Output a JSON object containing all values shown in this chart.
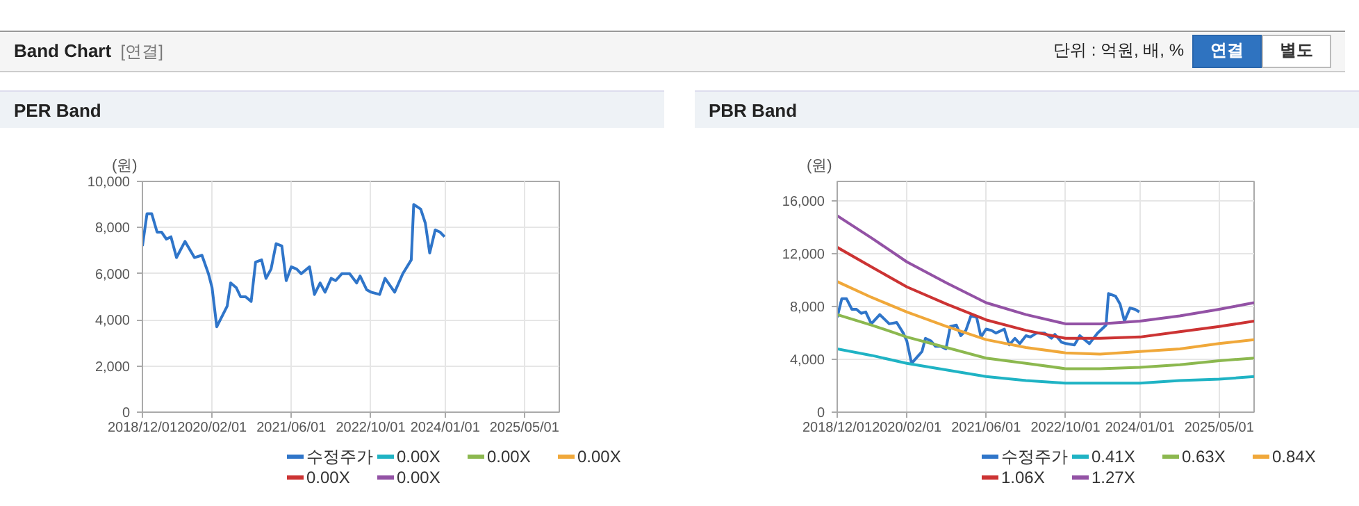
{
  "chart_data": [
    {
      "type": "line",
      "title": "PER Band",
      "ylabel": "(원)",
      "annotations": [
        "Band Chart",
        "[연결]",
        "단위 : 억원, 배, %",
        "연결",
        "별도"
      ],
      "x": [
        "2018-12-01",
        "2018-12-29",
        "2019-01-27",
        "2019-03-01",
        "2019-03-29",
        "2019-04-27",
        "2019-05-25",
        "2019-06-28",
        "2019-08-19",
        "2019-10-16",
        "2019-12-01",
        "2020-01-10",
        "2020-02-01",
        "2020-03-01",
        "2020-05-04",
        "2020-05-25",
        "2020-06-28",
        "2020-07-25",
        "2020-08-25",
        "2020-09-28",
        "2020-10-25",
        "2020-12-01",
        "2020-12-28",
        "2021-01-28",
        "2021-02-28",
        "2021-04-04",
        "2021-05-01",
        "2021-06-01",
        "2021-07-04",
        "2021-08-01",
        "2021-09-21",
        "2021-10-21",
        "2021-11-25",
        "2021-12-25",
        "2022-02-01",
        "2022-02-28",
        "2022-04-07",
        "2022-05-25",
        "2022-07-07",
        "2022-07-28",
        "2022-09-07",
        "2022-10-04",
        "2022-11-25",
        "2022-12-28",
        "2023-02-25",
        "2023-04-16",
        "2023-06-07",
        "2023-06-22",
        "2023-08-04",
        "2023-09-01",
        "2023-09-28",
        "2023-11-01",
        "2023-12-01",
        "2023-12-28"
      ],
      "series": [
        {
          "name": "수정주가",
          "color": "#2f75c9",
          "values": [
            7200,
            8600,
            8600,
            7800,
            7800,
            7500,
            7600,
            6700,
            7400,
            6700,
            6800,
            6000,
            5400,
            3700,
            4600,
            5600,
            5400,
            5000,
            5000,
            4800,
            6500,
            6600,
            5800,
            6200,
            7300,
            7200,
            5700,
            6300,
            6200,
            6000,
            6300,
            5100,
            5600,
            5200,
            5800,
            5700,
            6000,
            6000,
            5600,
            5900,
            5300,
            5200,
            5100,
            5800,
            5200,
            6000,
            6600,
            9000,
            8800,
            8200,
            6900,
            7900,
            7800,
            7600
          ]
        },
        {
          "name": "0.00X",
          "color": "#1fb3c4",
          "values": [
            null,
            null,
            null,
            null,
            null,
            null,
            null,
            null,
            null,
            null,
            null,
            null,
            null,
            null,
            null,
            null,
            null,
            null,
            null,
            null,
            null,
            null,
            null,
            null,
            null,
            null,
            null,
            null,
            null,
            null,
            null,
            null,
            null,
            null,
            null,
            null,
            null,
            null,
            null,
            null,
            null,
            null,
            null,
            null,
            null,
            null,
            null,
            null,
            null,
            null,
            null,
            null,
            null,
            null
          ]
        },
        {
          "name": "0.00X",
          "color": "#8cb84f",
          "values": [
            null,
            null,
            null,
            null,
            null,
            null,
            null,
            null,
            null,
            null,
            null,
            null,
            null,
            null,
            null,
            null,
            null,
            null,
            null,
            null,
            null,
            null,
            null,
            null,
            null,
            null,
            null,
            null,
            null,
            null,
            null,
            null,
            null,
            null,
            null,
            null,
            null,
            null,
            null,
            null,
            null,
            null,
            null,
            null,
            null,
            null,
            null,
            null,
            null,
            null,
            null,
            null,
            null,
            null
          ]
        },
        {
          "name": "0.00X",
          "color": "#f0a83a",
          "values": [
            null,
            null,
            null,
            null,
            null,
            null,
            null,
            null,
            null,
            null,
            null,
            null,
            null,
            null,
            null,
            null,
            null,
            null,
            null,
            null,
            null,
            null,
            null,
            null,
            null,
            null,
            null,
            null,
            null,
            null,
            null,
            null,
            null,
            null,
            null,
            null,
            null,
            null,
            null,
            null,
            null,
            null,
            null,
            null,
            null,
            null,
            null,
            null,
            null,
            null,
            null,
            null,
            null,
            null
          ]
        },
        {
          "name": "0.00X",
          "color": "#cc3333",
          "values": [
            null,
            null,
            null,
            null,
            null,
            null,
            null,
            null,
            null,
            null,
            null,
            null,
            null,
            null,
            null,
            null,
            null,
            null,
            null,
            null,
            null,
            null,
            null,
            null,
            null,
            null,
            null,
            null,
            null,
            null,
            null,
            null,
            null,
            null,
            null,
            null,
            null,
            null,
            null,
            null,
            null,
            null,
            null,
            null,
            null,
            null,
            null,
            null,
            null,
            null,
            null,
            null,
            null,
            null
          ]
        },
        {
          "name": "0.00X",
          "color": "#9352a5",
          "values": [
            null,
            null,
            null,
            null,
            null,
            null,
            null,
            null,
            null,
            null,
            null,
            null,
            null,
            null,
            null,
            null,
            null,
            null,
            null,
            null,
            null,
            null,
            null,
            null,
            null,
            null,
            null,
            null,
            null,
            null,
            null,
            null,
            null,
            null,
            null,
            null,
            null,
            null,
            null,
            null,
            null,
            null,
            null,
            null,
            null,
            null,
            null,
            null,
            null,
            null,
            null,
            null,
            null,
            null
          ]
        }
      ],
      "xlim": [
        "2018-12-01",
        "2025-12-01"
      ],
      "xticks": [
        {
          "value": "2018-12-01",
          "label": "2018/12/01"
        },
        {
          "value": "2020-02-01",
          "label": "2020/02/01"
        },
        {
          "value": "2021-06-01",
          "label": "2021/06/01"
        },
        {
          "value": "2022-10-01",
          "label": "2022/10/01"
        },
        {
          "value": "2024-01-01",
          "label": "2024/01/01"
        },
        {
          "value": "2025-05-01",
          "label": "2025/05/01"
        }
      ],
      "ylim": [
        0,
        10000
      ],
      "yticks": [
        0,
        {
          "value": 2000,
          "label": "2,000"
        },
        {
          "value": 4000,
          "label": "4,000"
        },
        {
          "value": 6000,
          "label": "6,000"
        },
        {
          "value": 8000,
          "label": "8,000"
        },
        {
          "value": 10000,
          "label": "10,000"
        }
      ],
      "grid": true,
      "legend": "bottom",
      "marker": "none",
      "line_style": "solid"
    },
    {
      "type": "line",
      "title": "PBR Band",
      "ylabel": "(원)",
      "x": [
        "2018-12-01",
        "2018-12-29",
        "2019-01-27",
        "2019-03-01",
        "2019-03-29",
        "2019-04-27",
        "2019-05-25",
        "2019-06-28",
        "2019-08-19",
        "2019-10-16",
        "2019-12-01",
        "2020-01-10",
        "2020-02-01",
        "2020-03-01",
        "2020-05-04",
        "2020-05-25",
        "2020-06-28",
        "2020-07-25",
        "2020-08-25",
        "2020-09-28",
        "2020-10-25",
        "2020-12-01",
        "2020-12-28",
        "2021-01-28",
        "2021-02-28",
        "2021-04-04",
        "2021-05-01",
        "2021-06-01",
        "2021-07-04",
        "2021-08-01",
        "2021-09-21",
        "2021-10-21",
        "2021-11-25",
        "2021-12-25",
        "2022-02-01",
        "2022-02-28",
        "2022-04-07",
        "2022-05-25",
        "2022-07-07",
        "2022-07-28",
        "2022-09-07",
        "2022-10-04",
        "2022-11-25",
        "2022-12-28",
        "2023-02-25",
        "2023-04-16",
        "2023-06-07",
        "2023-06-22",
        "2023-08-04",
        "2023-09-01",
        "2023-09-28",
        "2023-11-01",
        "2023-12-01",
        "2023-12-28"
      ],
      "series": [
        {
          "name": "수정주가",
          "color": "#2f75c9",
          "values": [
            7200,
            8600,
            8600,
            7800,
            7800,
            7500,
            7600,
            6700,
            7400,
            6700,
            6800,
            6000,
            5400,
            3700,
            4600,
            5600,
            5400,
            5000,
            5000,
            4800,
            6500,
            6600,
            5800,
            6200,
            7300,
            7200,
            5700,
            6300,
            6200,
            6000,
            6300,
            5100,
            5600,
            5200,
            5800,
            5700,
            6000,
            6000,
            5600,
            5900,
            5300,
            5200,
            5100,
            5800,
            5200,
            6000,
            6600,
            9000,
            8800,
            8200,
            6900,
            7900,
            7800,
            7600
          ]
        },
        {
          "name": "0.41X",
          "color": "#1fb3c4",
          "x": [
            "2018-12-01",
            "2019-07-01",
            "2020-02-01",
            "2020-10-01",
            "2021-06-01",
            "2022-02-01",
            "2022-10-01",
            "2023-05-01",
            "2024-01-01",
            "2024-09-01",
            "2025-05-01",
            "2025-12-01"
          ],
          "values": [
            4800,
            4300,
            3700,
            3200,
            2700,
            2400,
            2200,
            2200,
            2200,
            2400,
            2500,
            2700
          ]
        },
        {
          "name": "0.63X",
          "color": "#8cb84f",
          "x": [
            "2018-12-01",
            "2019-07-01",
            "2020-02-01",
            "2020-10-01",
            "2021-06-01",
            "2022-02-01",
            "2022-10-01",
            "2023-05-01",
            "2024-01-01",
            "2024-09-01",
            "2025-05-01",
            "2025-12-01"
          ],
          "values": [
            7400,
            6600,
            5700,
            4900,
            4100,
            3700,
            3300,
            3300,
            3400,
            3600,
            3900,
            4100
          ]
        },
        {
          "name": "0.84X",
          "color": "#f0a83a",
          "x": [
            "2018-12-01",
            "2019-07-01",
            "2020-02-01",
            "2020-10-01",
            "2021-06-01",
            "2022-02-01",
            "2022-10-01",
            "2023-05-01",
            "2024-01-01",
            "2024-09-01",
            "2025-05-01",
            "2025-12-01"
          ],
          "values": [
            9900,
            8700,
            7600,
            6500,
            5500,
            4900,
            4500,
            4400,
            4600,
            4800,
            5200,
            5500
          ]
        },
        {
          "name": "1.06X",
          "color": "#cc3333",
          "x": [
            "2018-12-01",
            "2019-07-01",
            "2020-02-01",
            "2020-10-01",
            "2021-06-01",
            "2022-02-01",
            "2022-10-01",
            "2023-05-01",
            "2024-01-01",
            "2024-09-01",
            "2025-05-01",
            "2025-12-01"
          ],
          "values": [
            12500,
            11000,
            9500,
            8200,
            7000,
            6200,
            5600,
            5600,
            5700,
            6100,
            6500,
            6900
          ]
        },
        {
          "name": "1.27X",
          "color": "#9352a5",
          "x": [
            "2018-12-01",
            "2019-07-01",
            "2020-02-01",
            "2020-10-01",
            "2021-06-01",
            "2022-02-01",
            "2022-10-01",
            "2023-05-01",
            "2024-01-01",
            "2024-09-01",
            "2025-05-01",
            "2025-12-01"
          ],
          "values": [
            14900,
            13200,
            11400,
            9800,
            8300,
            7400,
            6700,
            6700,
            6900,
            7300,
            7800,
            8300
          ]
        }
      ],
      "xlim": [
        "2018-12-01",
        "2025-12-01"
      ],
      "xticks": [
        {
          "value": "2018-12-01",
          "label": "2018/12/01"
        },
        {
          "value": "2020-02-01",
          "label": "2020/02/01"
        },
        {
          "value": "2021-06-01",
          "label": "2021/06/01"
        },
        {
          "value": "2022-10-01",
          "label": "2022/10/01"
        },
        {
          "value": "2024-01-01",
          "label": "2024/01/01"
        },
        {
          "value": "2025-05-01",
          "label": "2025/05/01"
        }
      ],
      "ylim": [
        0,
        17500
      ],
      "yticks": [
        0,
        {
          "value": 4000,
          "label": "4,000"
        },
        {
          "value": 8000,
          "label": "8,000"
        },
        {
          "value": 12000,
          "label": "12,000"
        },
        {
          "value": 16000,
          "label": "16,000"
        }
      ],
      "grid": true,
      "legend": "bottom",
      "marker": "none",
      "line_style": "solid"
    }
  ]
}
